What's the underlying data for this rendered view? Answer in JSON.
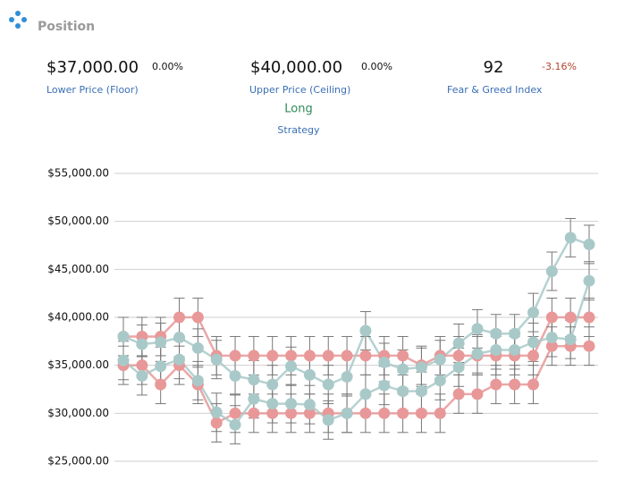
{
  "title": "Position",
  "stats": [
    {
      "value": "$37,000.00",
      "change": "0.00%",
      "label": "Lower Price (Floor)"
    },
    {
      "value": "$40,000.00",
      "change": "0.00%",
      "label": "Upper Price (Ceiling)"
    },
    {
      "value": "92",
      "change": "-3.16%",
      "label": "Fear & Greed Index"
    }
  ],
  "strategy": {
    "value": "Long",
    "label": "Strategy"
  },
  "chart_data": {
    "type": "line",
    "ylim": [
      25000,
      55000
    ],
    "yticks": [
      {
        "value": 25000,
        "label": "$25,000.00"
      },
      {
        "value": 30000,
        "label": "$30,000.00"
      },
      {
        "value": 35000,
        "label": "$35,000.00"
      },
      {
        "value": 40000,
        "label": "$40,000.00"
      },
      {
        "value": 45000,
        "label": "$45,000.00"
      },
      {
        "value": 50000,
        "label": "$50,000.00"
      },
      {
        "value": 55000,
        "label": "$55,000.00"
      }
    ],
    "grid": true,
    "series": [
      {
        "color": "#e89898",
        "error": 2000,
        "values": [
          38000,
          38000,
          38000,
          40000,
          40000,
          36000,
          36000,
          36000,
          36000,
          36000,
          36000,
          36000,
          36000,
          36000,
          36000,
          36000,
          35000,
          36000,
          36000,
          36000,
          36000,
          36000,
          36000,
          40000,
          40000,
          40000
        ]
      },
      {
        "color": "#e89898",
        "error": 2000,
        "values": [
          35000,
          35000,
          33000,
          35000,
          33000,
          29000,
          30000,
          30000,
          30000,
          30000,
          30000,
          30000,
          30000,
          30000,
          30000,
          30000,
          30000,
          30000,
          32000,
          32000,
          33000,
          33000,
          33000,
          37000,
          37000,
          37000
        ]
      },
      {
        "color": "#a9c9c9",
        "error": 2000,
        "values": [
          38000,
          37200,
          37400,
          37900,
          36800,
          35600,
          33900,
          33500,
          33000,
          34900,
          34000,
          33000,
          33800,
          38600,
          35300,
          34600,
          34800,
          35600,
          37300,
          38800,
          38300,
          38300,
          40500,
          44800,
          48300,
          47600
        ]
      },
      {
        "color": "#a9c9c9",
        "error": 2000,
        "values": [
          35500,
          33900,
          34900,
          35600,
          33400,
          30100,
          28800,
          31500,
          31000,
          31000,
          30900,
          29300,
          30000,
          32000,
          32900,
          32300,
          32300,
          33400,
          34800,
          36200,
          36600,
          36600,
          37400,
          37900,
          37700,
          43800
        ]
      }
    ]
  }
}
